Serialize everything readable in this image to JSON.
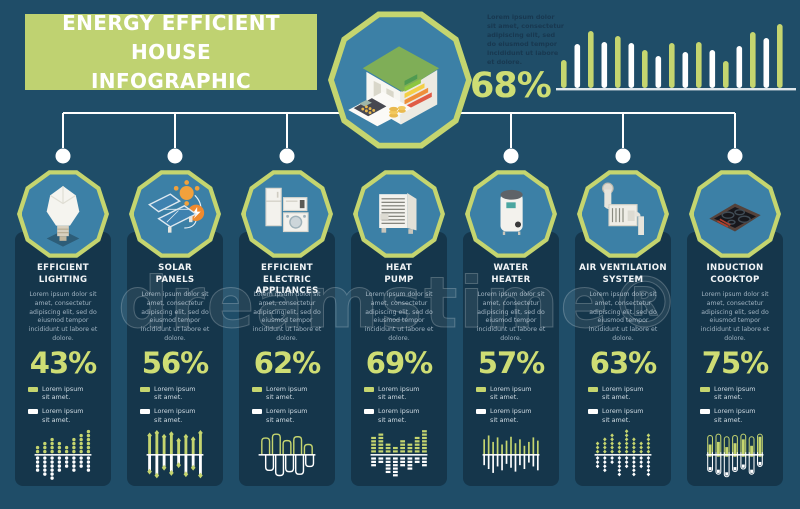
{
  "colors": {
    "background": "#1f4d68",
    "card": "#15364b",
    "accent": "#c5d56f",
    "percent_green": "#cedd74",
    "banner_green": "#bfd271",
    "octagon_fill": "#3c80a6",
    "white": "#ffffff",
    "dark_text": "#183850"
  },
  "banner": {
    "line1": "ENERGY EFFICIENT HOUSE",
    "line2": "INFOGRAPHIC"
  },
  "header": {
    "badge_icon": "energy-efficient-house",
    "description": "Lorem ipsum dolor sit amet, consectetur adipiscing elit, sed do eiusmod tempor incididunt ut labore et dolore.",
    "percent": "68%"
  },
  "watermark": {
    "text": "dreamstime®"
  },
  "chart_data": [
    {
      "name": "header-summary-bars",
      "type": "bar",
      "percent_context": "68%",
      "values": [
        28,
        44,
        57,
        46,
        52,
        45,
        38,
        32,
        45,
        36,
        46,
        38,
        27,
        42,
        56,
        50,
        64
      ],
      "bar_colors": "alternating green/white",
      "baseline": "white"
    },
    {
      "name": "efficient-lighting-chart",
      "type": "dot-columns",
      "above_color": "green",
      "below_color": "white",
      "above": [
        2,
        3,
        4,
        3,
        2,
        4,
        5,
        6
      ],
      "below": [
        4,
        5,
        6,
        4,
        3,
        4,
        3,
        4
      ]
    },
    {
      "name": "solar-panels-chart",
      "type": "arrow-bars",
      "above_color": "green",
      "below_color": "white",
      "above": [
        30,
        34,
        28,
        32,
        22,
        28,
        24,
        34
      ],
      "below": [
        26,
        32,
        20,
        28,
        16,
        30,
        20,
        32
      ]
    },
    {
      "name": "electric-appliances-chart",
      "type": "outline-wave",
      "above_color": "green",
      "below_color": "white",
      "above": [
        26,
        32,
        22,
        28,
        16
      ],
      "below": [
        24,
        32,
        26,
        30,
        18
      ]
    },
    {
      "name": "heat-pump-chart",
      "type": "segment-columns",
      "above_color": "green",
      "below_color": "white",
      "above": [
        5,
        6,
        3,
        2,
        4,
        3,
        5,
        7
      ],
      "below": [
        3,
        2,
        5,
        6,
        3,
        4,
        2,
        3
      ]
    },
    {
      "name": "water-heater-chart",
      "type": "thin-bars",
      "above_color": "green",
      "below_color": "white",
      "above": [
        24,
        30,
        20,
        27,
        16,
        22,
        28,
        18,
        24,
        14,
        20,
        27,
        22
      ],
      "below": [
        16,
        22,
        28,
        18,
        24,
        14,
        20,
        26,
        16,
        22,
        12,
        18,
        24
      ]
    },
    {
      "name": "air-ventilation-chart",
      "type": "diamond-columns",
      "above_color": "green",
      "below_color": "white",
      "above": [
        3,
        4,
        5,
        3,
        6,
        4,
        3,
        5
      ],
      "below": [
        3,
        4,
        2,
        5,
        3,
        5,
        3,
        5
      ]
    },
    {
      "name": "induction-cooktop-chart",
      "type": "tubes",
      "above_color": "green",
      "below_color": "white",
      "above": [
        30,
        32,
        28,
        30,
        32,
        28,
        32
      ],
      "above_fill": [
        16,
        20,
        12,
        18,
        24,
        14,
        28
      ],
      "below": [
        26,
        30,
        34,
        26,
        22,
        30,
        18
      ]
    }
  ],
  "columns": [
    {
      "title": [
        "EFFICIENT",
        "LIGHTING"
      ],
      "icon": "light-bulb",
      "percent": "43%",
      "description": "Lorem ipsum dolor sit amet, consectetur adipiscing elit, sed do eiusmod tempor incididunt ut labore et dolore.",
      "legend": [
        {
          "swatch": "green",
          "label": "Lorem ipsum sit amet."
        },
        {
          "swatch": "white",
          "label": "Lorem ipsum sit amet."
        }
      ]
    },
    {
      "title": [
        "SOLAR",
        "PANELS"
      ],
      "icon": "solar-panels",
      "percent": "56%",
      "description": "Lorem ipsum dolor sit amet, consectetur adipiscing elit, sed do eiusmod tempor incididunt ut labore et dolore.",
      "legend": [
        {
          "swatch": "green",
          "label": "Lorem ipsum sit amet."
        },
        {
          "swatch": "white",
          "label": "Lorem ipsum sit amet."
        }
      ]
    },
    {
      "title": [
        "EFFICIENT ELECTRIC",
        "APPLIANCES"
      ],
      "icon": "electric-appliances",
      "percent": "62%",
      "description": "Lorem ipsum dolor sit amet, consectetur adipiscing elit, sed do eiusmod tempor incididunt ut labore et dolore.",
      "legend": [
        {
          "swatch": "green",
          "label": "Lorem ipsum sit amet."
        },
        {
          "swatch": "white",
          "label": "Lorem ipsum sit amet."
        }
      ]
    },
    {
      "title": [
        "HEAT",
        "PUMP"
      ],
      "icon": "heat-pump",
      "percent": "69%",
      "description": "Lorem ipsum dolor sit amet, consectetur adipiscing elit, sed do eiusmod tempor incididunt ut labore et dolore.",
      "legend": [
        {
          "swatch": "green",
          "label": "Lorem ipsum sit amet."
        },
        {
          "swatch": "white",
          "label": "Lorem ipsum sit amet."
        }
      ]
    },
    {
      "title": [
        "WATER",
        "HEATER"
      ],
      "icon": "water-heater",
      "percent": "57%",
      "description": "Lorem ipsum dolor sit amet, consectetur adipiscing elit, sed do eiusmod tempor incididunt ut labore et dolore.",
      "legend": [
        {
          "swatch": "green",
          "label": "Lorem ipsum sit amet."
        },
        {
          "swatch": "white",
          "label": "Lorem ipsum sit amet."
        }
      ]
    },
    {
      "title": [
        "AIR VENTILATION",
        "SYSTEM"
      ],
      "icon": "air-ventilation",
      "percent": "63%",
      "description": "Lorem ipsum dolor sit amet, consectetur adipiscing elit, sed do eiusmod tempor incididunt ut labore et dolore.",
      "legend": [
        {
          "swatch": "green",
          "label": "Lorem ipsum sit amet."
        },
        {
          "swatch": "white",
          "label": "Lorem ipsum sit amet."
        }
      ]
    },
    {
      "title": [
        "INDUCTION",
        "COOKTOP"
      ],
      "icon": "induction-cooktop",
      "percent": "75%",
      "description": "Lorem ipsum dolor sit amet, consectetur adipiscing elit, sed do eiusmod tempor incididunt ut labore et dolore.",
      "legend": [
        {
          "swatch": "green",
          "label": "Lorem ipsum sit amet."
        },
        {
          "swatch": "white",
          "label": "Lorem ipsum sit amet."
        }
      ]
    }
  ]
}
